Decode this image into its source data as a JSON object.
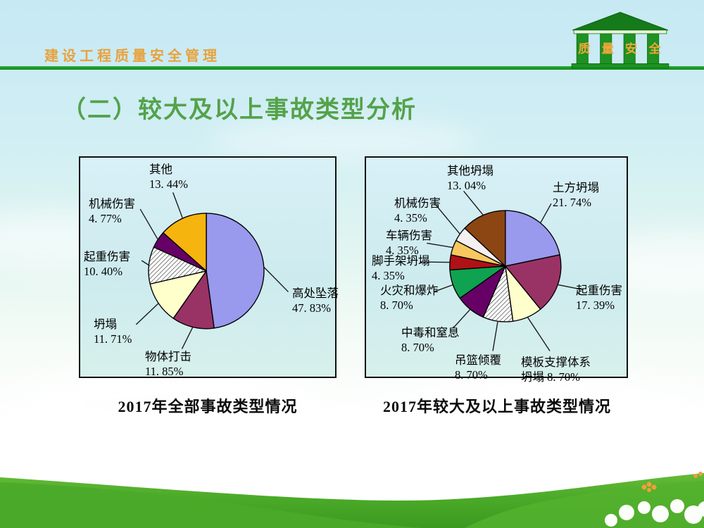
{
  "header": {
    "title": "建设工程质量安全管理",
    "logo_text": "质量安全",
    "title_color": "#E8A23C",
    "divider_color": "#1D9A26",
    "logo_green": "#1E9222"
  },
  "slide_title": {
    "text": "（二）较大及以上事故类型分析",
    "color": "#54A24A"
  },
  "background": {
    "sky_top": "#C6E9F3",
    "grass_green": "#46A527"
  },
  "chart_data": [
    {
      "type": "pie",
      "caption": "2017年全部事故类型情况",
      "start_angle": "12-oclock",
      "direction": "clockwise",
      "legend_position": "labels-with-leader-lines",
      "slices": [
        {
          "label": "高处坠落",
          "value": 47.83,
          "display": "47. 83%",
          "color": "#9999EE"
        },
        {
          "label": "物体打击",
          "value": 11.85,
          "display": "11. 85%",
          "color": "#993366"
        },
        {
          "label": "坍塌",
          "value": 11.71,
          "display": "11. 71%",
          "color": "#FFFFCC"
        },
        {
          "label": "起重伤害",
          "value": 10.4,
          "display": "10. 40%",
          "color": "hatch"
        },
        {
          "label": "机械伤害",
          "value": 4.77,
          "display": "4. 77%",
          "color": "#660066"
        },
        {
          "label": "其他",
          "value": 13.44,
          "display": "13. 44%",
          "color": "#F6B40E"
        }
      ]
    },
    {
      "type": "pie",
      "caption": "2017年较大及以上事故类型情况",
      "start_angle": "12-oclock",
      "direction": "clockwise",
      "legend_position": "labels-with-leader-lines",
      "slices": [
        {
          "label": "土方坍塌",
          "value": 21.74,
          "display": "21. 74%",
          "color": "#9999EE"
        },
        {
          "label": "起重伤害",
          "value": 17.39,
          "display": "17. 39%",
          "color": "#993366"
        },
        {
          "label": "模板支撑体系坍塌",
          "value": 8.7,
          "display": "8. 70%",
          "color": "#FFFFCC",
          "label_lines": [
            "模板支撑体系",
            "坍塌  8. 70%"
          ]
        },
        {
          "label": "吊篮倾覆",
          "value": 8.7,
          "display": "8. 70%",
          "color": "hatch"
        },
        {
          "label": "中毒和窒息",
          "value": 8.7,
          "display": "8. 70%",
          "color": "#660066"
        },
        {
          "label": "火灾和爆炸",
          "value": 8.7,
          "display": "8. 70%",
          "color": "#0FA251"
        },
        {
          "label": "脚手架坍塌",
          "value": 4.35,
          "display": "4. 35%",
          "color": "#B01116"
        },
        {
          "label": "车辆伤害",
          "value": 4.35,
          "display": "4. 35%",
          "color": "#F8C860"
        },
        {
          "label": "机械伤害",
          "value": 4.35,
          "display": "4. 35%",
          "color": "#F4F0F0"
        },
        {
          "label": "其他坍塌",
          "value": 13.04,
          "display": "13. 04%",
          "color": "#8C4613"
        }
      ]
    }
  ]
}
